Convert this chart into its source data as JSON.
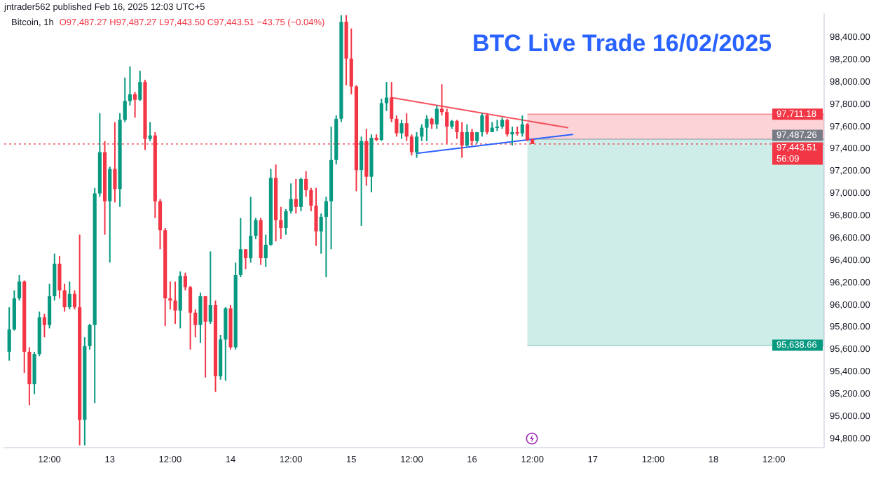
{
  "chart_data": {
    "type": "candlestick",
    "title": "BTC Live Trade 16/02/2025",
    "x": [
      "2025-02-12T04:00",
      "2025-02-12T05:00",
      "2025-02-12T06:00",
      "2025-02-12T07:00",
      "2025-02-12T08:00",
      "2025-02-12T09:00",
      "2025-02-12T10:00",
      "2025-02-12T11:00",
      "2025-02-12T12:00",
      "2025-02-12T13:00",
      "2025-02-12T14:00",
      "2025-02-12T15:00",
      "2025-02-12T16:00",
      "2025-02-12T17:00",
      "2025-02-12T18:00",
      "2025-02-12T19:00",
      "2025-02-12T20:00",
      "2025-02-12T21:00",
      "2025-02-12T22:00",
      "2025-02-12T23:00",
      "2025-02-13T00:00",
      "2025-02-13T01:00",
      "2025-02-13T02:00",
      "2025-02-13T03:00",
      "2025-02-13T04:00",
      "2025-02-13T05:00",
      "2025-02-13T06:00",
      "2025-02-13T07:00",
      "2025-02-13T08:00",
      "2025-02-13T09:00",
      "2025-02-13T10:00",
      "2025-02-13T11:00",
      "2025-02-13T12:00",
      "2025-02-13T13:00",
      "2025-02-13T14:00",
      "2025-02-13T15:00",
      "2025-02-13T16:00",
      "2025-02-13T17:00",
      "2025-02-13T18:00",
      "2025-02-13T19:00",
      "2025-02-13T20:00",
      "2025-02-13T21:00",
      "2025-02-13T22:00",
      "2025-02-13T23:00",
      "2025-02-14T00:00",
      "2025-02-14T01:00",
      "2025-02-14T02:00",
      "2025-02-14T03:00",
      "2025-02-14T04:00",
      "2025-02-14T05:00",
      "2025-02-14T06:00",
      "2025-02-14T07:00",
      "2025-02-14T08:00",
      "2025-02-14T09:00",
      "2025-02-14T10:00",
      "2025-02-14T11:00",
      "2025-02-14T12:00",
      "2025-02-14T13:00",
      "2025-02-14T14:00",
      "2025-02-14T15:00",
      "2025-02-14T16:00",
      "2025-02-14T17:00",
      "2025-02-14T18:00",
      "2025-02-14T19:00",
      "2025-02-14T20:00",
      "2025-02-14T21:00",
      "2025-02-14T22:00",
      "2025-02-14T23:00",
      "2025-02-15T00:00",
      "2025-02-15T01:00",
      "2025-02-15T02:00",
      "2025-02-15T03:00",
      "2025-02-15T04:00",
      "2025-02-15T05:00",
      "2025-02-15T06:00",
      "2025-02-15T07:00",
      "2025-02-15T08:00",
      "2025-02-15T09:00",
      "2025-02-15T10:00",
      "2025-02-15T11:00",
      "2025-02-15T12:00",
      "2025-02-15T13:00",
      "2025-02-15T14:00",
      "2025-02-15T15:00",
      "2025-02-15T16:00",
      "2025-02-15T17:00",
      "2025-02-15T18:00",
      "2025-02-15T19:00",
      "2025-02-15T20:00",
      "2025-02-15T21:00",
      "2025-02-15T22:00",
      "2025-02-15T23:00",
      "2025-02-16T00:00",
      "2025-02-16T01:00",
      "2025-02-16T02:00",
      "2025-02-16T03:00",
      "2025-02-16T04:00",
      "2025-02-16T05:00",
      "2025-02-16T06:00",
      "2025-02-16T07:00",
      "2025-02-16T08:00",
      "2025-02-16T09:00",
      "2025-02-16T10:00",
      "2025-02-16T11:00",
      "2025-02-16T12:00"
    ],
    "ohlc": [
      [
        95580,
        95980,
        95500,
        95780
      ],
      [
        95780,
        96130,
        95770,
        96060
      ],
      [
        96060,
        96270,
        96040,
        96210
      ],
      [
        96210,
        96220,
        95390,
        95580
      ],
      [
        95580,
        95620,
        95100,
        95290
      ],
      [
        95290,
        95580,
        95200,
        95560
      ],
      [
        95560,
        95940,
        95540,
        95890
      ],
      [
        95890,
        95920,
        95710,
        95820
      ],
      [
        95820,
        96190,
        95790,
        96080
      ],
      [
        96080,
        96460,
        96040,
        96370
      ],
      [
        96370,
        96440,
        96060,
        96130
      ],
      [
        96130,
        96190,
        95940,
        95980
      ],
      [
        95980,
        96210,
        95960,
        96100
      ],
      [
        96100,
        96130,
        95960,
        95980
      ],
      [
        95980,
        96630,
        94740,
        94970
      ],
      [
        94970,
        95710,
        94740,
        95630
      ],
      [
        95630,
        95830,
        95600,
        95820
      ],
      [
        95820,
        97050,
        95120,
        97000
      ],
      [
        97000,
        97720,
        96970,
        97370
      ],
      [
        97370,
        97470,
        96630,
        96930
      ],
      [
        96930,
        97240,
        96380,
        97220
      ],
      [
        97220,
        97640,
        96920,
        97040
      ],
      [
        97040,
        97720,
        96880,
        97660
      ],
      [
        97660,
        98040,
        97640,
        97830
      ],
      [
        97830,
        98140,
        97790,
        97890
      ],
      [
        97890,
        97910,
        97680,
        97840
      ],
      [
        97840,
        98100,
        97830,
        98000
      ],
      [
        98000,
        98020,
        97390,
        97490
      ],
      [
        97490,
        97640,
        97470,
        97520
      ],
      [
        97520,
        97550,
        96780,
        96930
      ],
      [
        96930,
        96950,
        96500,
        96670
      ],
      [
        96670,
        96690,
        95810,
        96060
      ],
      [
        96060,
        96210,
        95960,
        96040
      ],
      [
        96040,
        96210,
        95830,
        95950
      ],
      [
        95950,
        96300,
        95790,
        96260
      ],
      [
        96260,
        96290,
        96130,
        96160
      ],
      [
        96160,
        96170,
        95600,
        95930
      ],
      [
        95930,
        95960,
        95710,
        95820
      ],
      [
        95820,
        96110,
        95660,
        96080
      ],
      [
        96080,
        96080,
        95350,
        95850
      ],
      [
        95850,
        96480,
        95830,
        96000
      ],
      [
        96000,
        96040,
        95220,
        95360
      ],
      [
        95360,
        95730,
        95330,
        95690
      ],
      [
        95690,
        95980,
        95320,
        95970
      ],
      [
        95970,
        96000,
        95600,
        95620
      ],
      [
        95620,
        96380,
        95600,
        96270
      ],
      [
        96270,
        96780,
        96250,
        96500
      ],
      [
        96500,
        96500,
        96320,
        96420
      ],
      [
        96420,
        96970,
        96380,
        96620
      ],
      [
        96620,
        96780,
        96590,
        96760
      ],
      [
        96760,
        96780,
        96360,
        96420
      ],
      [
        96420,
        96630,
        96340,
        96540
      ],
      [
        96540,
        97220,
        96530,
        97140
      ],
      [
        97140,
        97260,
        96570,
        96760
      ],
      [
        96760,
        96880,
        96590,
        96690
      ],
      [
        96690,
        96860,
        96630,
        96840
      ],
      [
        96840,
        97090,
        96820,
        96950
      ],
      [
        96950,
        97130,
        96820,
        96880
      ],
      [
        96880,
        97140,
        96840,
        97130
      ],
      [
        97130,
        97200,
        96970,
        97030
      ],
      [
        97030,
        97050,
        96840,
        96890
      ],
      [
        96890,
        97050,
        96530,
        96660
      ],
      [
        96660,
        96820,
        96460,
        96790
      ],
      [
        96790,
        96970,
        96250,
        96930
      ],
      [
        96930,
        97600,
        96500,
        97300
      ],
      [
        97300,
        97700,
        97260,
        97670
      ],
      [
        97670,
        98600,
        97640,
        98540
      ],
      [
        98540,
        98600,
        97970,
        98210
      ],
      [
        98210,
        98480,
        97890,
        97960
      ],
      [
        97960,
        97970,
        97020,
        97210
      ],
      [
        97210,
        97510,
        96710,
        97470
      ],
      [
        97470,
        97580,
        97070,
        97150
      ],
      [
        97150,
        97530,
        97010,
        97500
      ],
      [
        97500,
        97530,
        97470,
        97480
      ],
      [
        97480,
        97850,
        97470,
        97810
      ],
      [
        97810,
        98000,
        97740,
        97860
      ],
      [
        97860,
        98000,
        97640,
        97670
      ],
      [
        97670,
        97700,
        97510,
        97540
      ],
      [
        97540,
        97660,
        97490,
        97630
      ],
      [
        97630,
        97720,
        97470,
        97510
      ],
      [
        97510,
        97530,
        97340,
        97370
      ],
      [
        97370,
        97550,
        97320,
        97510
      ],
      [
        97510,
        97620,
        97470,
        97590
      ],
      [
        97590,
        97700,
        97470,
        97670
      ],
      [
        97670,
        97680,
        97580,
        97620
      ],
      [
        97620,
        97790,
        97580,
        97760
      ],
      [
        97760,
        97980,
        97700,
        97730
      ],
      [
        97730,
        97760,
        97450,
        97600
      ],
      [
        97600,
        97660,
        97580,
        97650
      ],
      [
        97650,
        97660,
        97490,
        97550
      ],
      [
        97550,
        97640,
        97320,
        97430
      ],
      [
        97430,
        97620,
        97420,
        97550
      ],
      [
        97550,
        97580,
        97430,
        97470
      ],
      [
        97470,
        97550,
        97450,
        97550
      ],
      [
        97550,
        97720,
        97510,
        97700
      ],
      [
        97700,
        97720,
        97530,
        97550
      ],
      [
        97550,
        97640,
        97550,
        97590
      ],
      [
        97590,
        97660,
        97560,
        97600
      ],
      [
        97600,
        97680,
        97580,
        97660
      ],
      [
        97660,
        97670,
        97510,
        97530
      ],
      [
        97530,
        97600,
        97430,
        97550
      ],
      [
        97550,
        97600,
        97520,
        97540
      ],
      [
        97540,
        97700,
        97510,
        97620
      ],
      [
        97620,
        97630,
        97470,
        97480
      ],
      [
        97487.27,
        97487.27,
        97443.5,
        97443.51
      ]
    ],
    "series": [
      {
        "type": "line",
        "color": "#f7525f",
        "x": [
          "2025-02-15T08:00",
          "2025-02-16T19:00"
        ],
        "values": [
          97860,
          97590
        ]
      },
      {
        "type": "line",
        "color": "#2962ff",
        "x": [
          "2025-02-15T13:00",
          "2025-02-16T20:00"
        ],
        "values": [
          97360,
          97530
        ]
      }
    ],
    "marker": "none",
    "xlim": [
      "2025-02-12T03:00",
      "2025-02-18T22:00"
    ],
    "xticks": [
      {
        "value": "2025-02-12T12:00",
        "label": "12:00"
      },
      {
        "value": "2025-02-13",
        "label": "13"
      },
      {
        "value": "2025-02-13T12:00",
        "label": "12:00"
      },
      {
        "value": "2025-02-14",
        "label": "14"
      },
      {
        "value": "2025-02-14T12:00",
        "label": "12:00"
      },
      {
        "value": "2025-02-15",
        "label": "15"
      },
      {
        "value": "2025-02-15T12:00",
        "label": "12:00"
      },
      {
        "value": "2025-02-16",
        "label": "16"
      },
      {
        "value": "2025-02-16T12:00",
        "label": "12:00"
      },
      {
        "value": "2025-02-17",
        "label": "17"
      },
      {
        "value": "2025-02-17T12:00",
        "label": "12:00"
      },
      {
        "value": "2025-02-18",
        "label": "18"
      },
      {
        "value": "2025-02-18T12:00",
        "label": "12:00"
      }
    ],
    "ylim": [
      94720,
      98610
    ],
    "yticks": [
      {
        "value": 94800,
        "label": "94,800.00"
      },
      {
        "value": 95000,
        "label": "95,000.00"
      },
      {
        "value": 95200,
        "label": "95,200.00"
      },
      {
        "value": 95400,
        "label": "95,400.00"
      },
      {
        "value": 95600,
        "label": "95,600.00"
      },
      {
        "value": 95800,
        "label": "95,800.00"
      },
      {
        "value": 96000,
        "label": "96,000.00"
      },
      {
        "value": 96200,
        "label": "96,200.00"
      },
      {
        "value": 96400,
        "label": "96,400.00"
      },
      {
        "value": 96600,
        "label": "96,600.00"
      },
      {
        "value": 96800,
        "label": "96,800.00"
      },
      {
        "value": 97000,
        "label": "97,000.00"
      },
      {
        "value": 97200,
        "label": "97,200.00"
      },
      {
        "value": 97400,
        "label": "97,400.00"
      },
      {
        "value": 97600,
        "label": "97,600.00"
      },
      {
        "value": 97800,
        "label": "97,800.00"
      },
      {
        "value": 98000,
        "label": "98,000.00"
      },
      {
        "value": 98200,
        "label": "98,200.00"
      },
      {
        "value": 98400,
        "label": "98,400.00"
      }
    ],
    "bands": [
      {
        "axis": "y",
        "from": 97487.26,
        "to": 97711.18,
        "color": "#f23645"
      },
      {
        "axis": "y",
        "from": 95638.66,
        "to": 97487.26,
        "color": "#22ab94"
      }
    ],
    "ref_lines": [
      {
        "axis": "y",
        "value": 97711.18,
        "label": "97,711.18",
        "color": "#f23645"
      },
      {
        "axis": "y",
        "value": 97487.26,
        "label": "97,487.26",
        "color": "#787b86"
      },
      {
        "axis": "y",
        "value": 97443.51,
        "label": "97,443.51",
        "color": "#f23645",
        "line_style": "dotted"
      },
      {
        "axis": "y",
        "value": 95638.66,
        "label": "95,638.66",
        "color": "#089981"
      }
    ],
    "annotations": [
      "jntrader562 published Feb 16, 2025 12:03 UTC+5",
      "Bitcoin, 1h",
      "O97,487.27 H97,487.27 L97,443.50 C97,443.51 −43.75 (−0.04%)",
      "56:09"
    ]
  }
}
